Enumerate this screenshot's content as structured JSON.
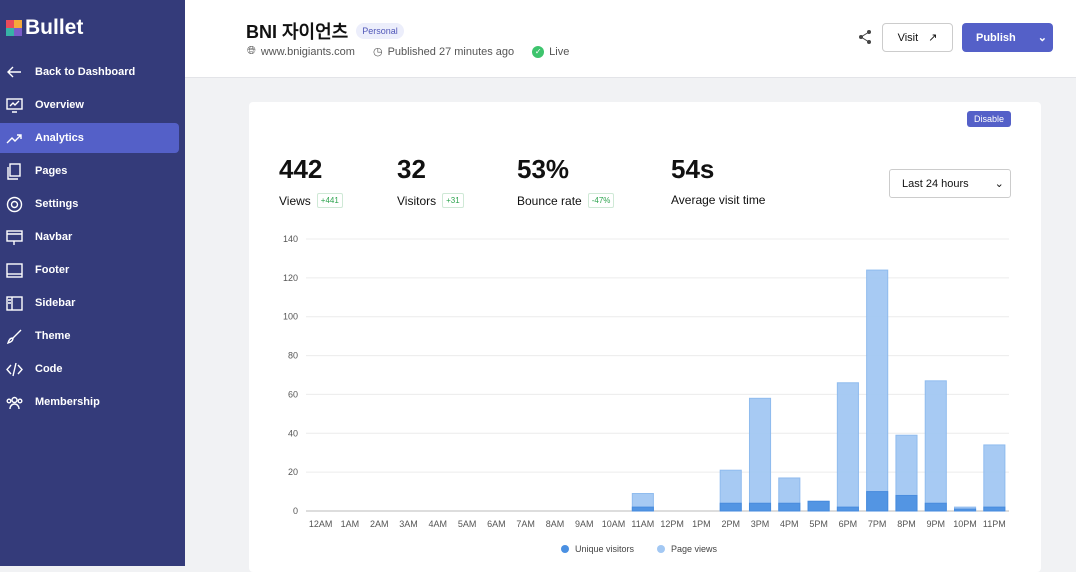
{
  "sidebar": {
    "brand": "Bullet",
    "items": [
      {
        "label": "Back to Dashboard",
        "icon": "arrow-left-icon"
      },
      {
        "label": "Overview",
        "icon": "chart-monitor-icon"
      },
      {
        "label": "Analytics",
        "icon": "trending-up-icon",
        "active": true
      },
      {
        "label": "Pages",
        "icon": "pages-icon"
      },
      {
        "label": "Settings",
        "icon": "gear-icon"
      },
      {
        "label": "Navbar",
        "icon": "navbar-icon"
      },
      {
        "label": "Footer",
        "icon": "footer-icon"
      },
      {
        "label": "Sidebar",
        "icon": "sidebar-icon"
      },
      {
        "label": "Theme",
        "icon": "brush-icon"
      },
      {
        "label": "Code",
        "icon": "code-icon"
      },
      {
        "label": "Membership",
        "icon": "users-icon"
      }
    ]
  },
  "header": {
    "title": "BNI 자이언츠",
    "badge": "Personal",
    "domain": "www.bnigiants.com",
    "published": "Published 27 minutes ago",
    "status": "Live",
    "visit": "Visit",
    "publish": "Publish"
  },
  "card": {
    "disable": "Disable",
    "range": "Last 24 hours",
    "stats": [
      {
        "value": "442",
        "label": "Views",
        "delta": "+441"
      },
      {
        "value": "32",
        "label": "Visitors",
        "delta": "+31"
      },
      {
        "value": "53%",
        "label": "Bounce rate",
        "delta": "-47%"
      },
      {
        "value": "54s",
        "label": "Average visit time"
      }
    ]
  },
  "chart_data": {
    "type": "bar",
    "categories": [
      "12AM",
      "1AM",
      "2AM",
      "3AM",
      "4AM",
      "5AM",
      "6AM",
      "7AM",
      "8AM",
      "9AM",
      "10AM",
      "11AM",
      "12PM",
      "1PM",
      "2PM",
      "3PM",
      "4PM",
      "5PM",
      "6PM",
      "7PM",
      "8PM",
      "9PM",
      "10PM",
      "11PM"
    ],
    "series": [
      {
        "name": "Unique visitors",
        "color": "#4a90e2",
        "values": [
          0,
          0,
          0,
          0,
          0,
          0,
          0,
          0,
          0,
          0,
          0,
          2,
          0,
          0,
          4,
          4,
          4,
          5,
          2,
          10,
          8,
          4,
          1,
          2
        ]
      },
      {
        "name": "Page views",
        "color": "#a3c8f3",
        "values": [
          0,
          0,
          0,
          0,
          0,
          0,
          0,
          0,
          0,
          0,
          0,
          9,
          0,
          0,
          21,
          58,
          17,
          5,
          66,
          124,
          39,
          67,
          2,
          34
        ]
      }
    ],
    "ylim": [
      0,
      140
    ],
    "yticks": [
      0,
      20,
      40,
      60,
      80,
      100,
      120,
      140
    ],
    "legend": "bottom",
    "grid": true
  }
}
